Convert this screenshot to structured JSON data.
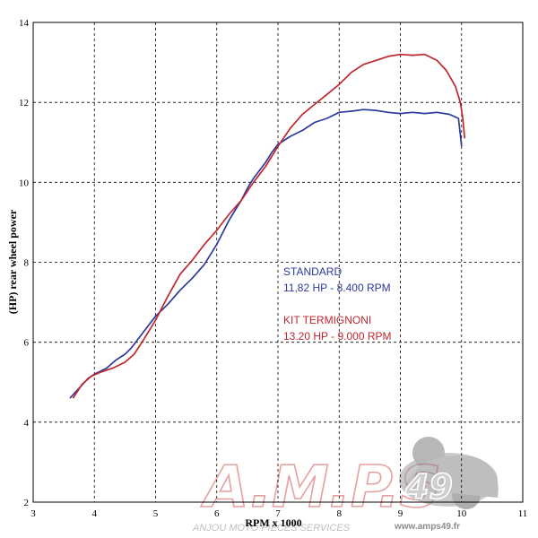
{
  "chart_data": {
    "type": "line",
    "title": "",
    "xlabel": "RPM x 1000",
    "ylabel": "(HP) rear wheel power",
    "xlim": [
      3,
      11
    ],
    "ylim": [
      2,
      14
    ],
    "xticks": [
      3,
      4,
      5,
      6,
      7,
      8,
      9,
      10,
      11
    ],
    "yticks": [
      2,
      4,
      6,
      8,
      10,
      12,
      14
    ],
    "grid": true,
    "grid_style": "dashed",
    "series": [
      {
        "name": "STANDARD",
        "color": "#2b3a9b",
        "x": [
          3.6,
          3.75,
          3.9,
          4.0,
          4.2,
          4.35,
          4.5,
          4.6,
          4.8,
          5.0,
          5.2,
          5.4,
          5.6,
          5.8,
          6.0,
          6.1,
          6.2,
          6.3,
          6.4,
          6.5,
          6.6,
          6.7,
          6.8,
          6.9,
          7.0,
          7.2,
          7.4,
          7.6,
          7.8,
          8.0,
          8.2,
          8.4,
          8.6,
          8.8,
          9.0,
          9.2,
          9.4,
          9.6,
          9.8,
          9.95,
          10.0
        ],
        "y": [
          4.6,
          4.85,
          5.1,
          5.2,
          5.35,
          5.55,
          5.7,
          5.85,
          6.25,
          6.65,
          6.95,
          7.3,
          7.6,
          7.95,
          8.45,
          8.75,
          9.05,
          9.3,
          9.55,
          9.85,
          10.1,
          10.3,
          10.5,
          10.75,
          10.95,
          11.15,
          11.3,
          11.5,
          11.6,
          11.75,
          11.78,
          11.82,
          11.8,
          11.75,
          11.72,
          11.75,
          11.72,
          11.75,
          11.7,
          11.6,
          10.9
        ]
      },
      {
        "name": "KIT TERMIGNONI",
        "color": "#c0262c",
        "x": [
          3.65,
          3.8,
          3.95,
          4.1,
          4.3,
          4.5,
          4.65,
          4.8,
          5.0,
          5.2,
          5.4,
          5.6,
          5.8,
          6.0,
          6.2,
          6.4,
          6.6,
          6.8,
          7.0,
          7.2,
          7.4,
          7.6,
          7.8,
          8.0,
          8.2,
          8.4,
          8.6,
          8.8,
          9.0,
          9.2,
          9.4,
          9.6,
          9.75,
          9.9,
          9.98,
          10.02,
          10.05
        ],
        "y": [
          4.6,
          4.95,
          5.15,
          5.25,
          5.35,
          5.5,
          5.7,
          6.05,
          6.55,
          7.15,
          7.7,
          8.05,
          8.45,
          8.8,
          9.2,
          9.55,
          10.0,
          10.4,
          10.9,
          11.35,
          11.7,
          11.95,
          12.2,
          12.45,
          12.75,
          12.95,
          13.05,
          13.15,
          13.2,
          13.18,
          13.2,
          13.05,
          12.8,
          12.4,
          12.0,
          11.6,
          11.1
        ]
      }
    ],
    "annotations": {
      "standard_name": "STANDARD",
      "standard_value": "11,82 HP - 8.400 RPM",
      "termignoni_name": "KIT TERMIGNONI",
      "termignoni_value": "13.20 HP - 9.000 RPM"
    }
  },
  "watermark": {
    "logo_text": "A.M.P.S",
    "logo_number": "49",
    "tagline": "ANJOU MOTO PIECES SERVICES",
    "url": "www.amps49.fr"
  }
}
